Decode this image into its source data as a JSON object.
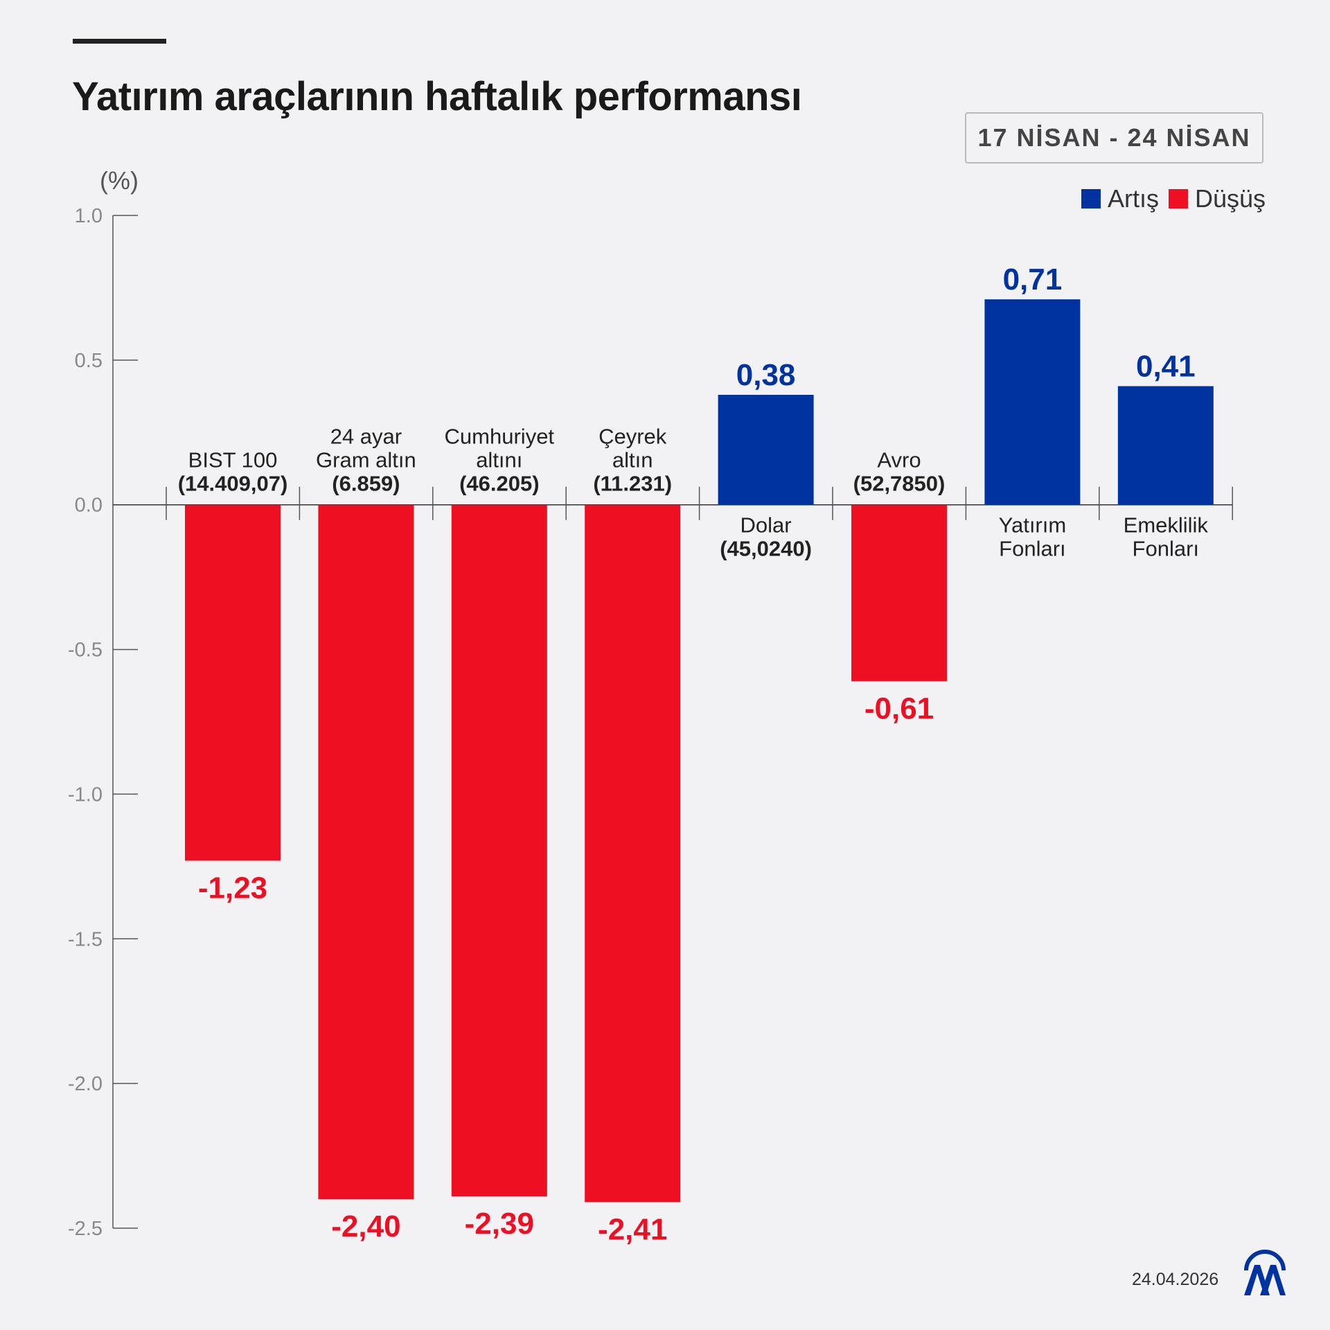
{
  "title": "Yatırım araçlarının haftalık performansı",
  "date_range": "17 NİSAN - 24 NİSAN",
  "legend": [
    {
      "label": "Artış",
      "color": "#0033a0"
    },
    {
      "label": "Düşüş",
      "color": "#ee0f23"
    }
  ],
  "footer_date": "24.04.2026",
  "logo_text": "AA",
  "chart_data": {
    "type": "bar",
    "title": "Yatırım araçlarının haftalık performansı",
    "ylabel": "(%)",
    "ylim": [
      -2.5,
      1.0
    ],
    "yticks": [
      "1.0",
      "0.5",
      "0.0",
      "-0.5",
      "-1.0",
      "-1.5",
      "-2.0",
      "-2.5"
    ],
    "ytick_values": [
      1.0,
      0.5,
      0.0,
      -0.5,
      -1.0,
      -1.5,
      -2.0,
      -2.5
    ],
    "grid": false,
    "legend_position": "top-right",
    "positive_color": "#0033a0",
    "negative_color": "#ee0f23",
    "categories": [
      {
        "lines": [
          "BIST 100",
          "(14.409,07)"
        ],
        "value": -1.23,
        "label": "-1,23"
      },
      {
        "lines": [
          "24 ayar",
          "Gram altın",
          "(6.859)"
        ],
        "value": -2.4,
        "label": "-2,40"
      },
      {
        "lines": [
          "Cumhuriyet",
          "altını",
          "(46.205)"
        ],
        "value": -2.39,
        "label": "-2,39"
      },
      {
        "lines": [
          "Çeyrek",
          "altın",
          "(11.231)"
        ],
        "value": -2.41,
        "label": "-2,41"
      },
      {
        "lines": [
          "Dolar",
          "(45,0240)"
        ],
        "value": 0.38,
        "label": "0,38"
      },
      {
        "lines": [
          "Avro",
          "(52,7850)"
        ],
        "value": -0.61,
        "label": "-0,61"
      },
      {
        "lines": [
          "Yatırım",
          "Fonları"
        ],
        "value": 0.71,
        "label": "0,71"
      },
      {
        "lines": [
          "Emeklilik",
          "Fonları"
        ],
        "value": 0.41,
        "label": "0,41"
      }
    ]
  }
}
